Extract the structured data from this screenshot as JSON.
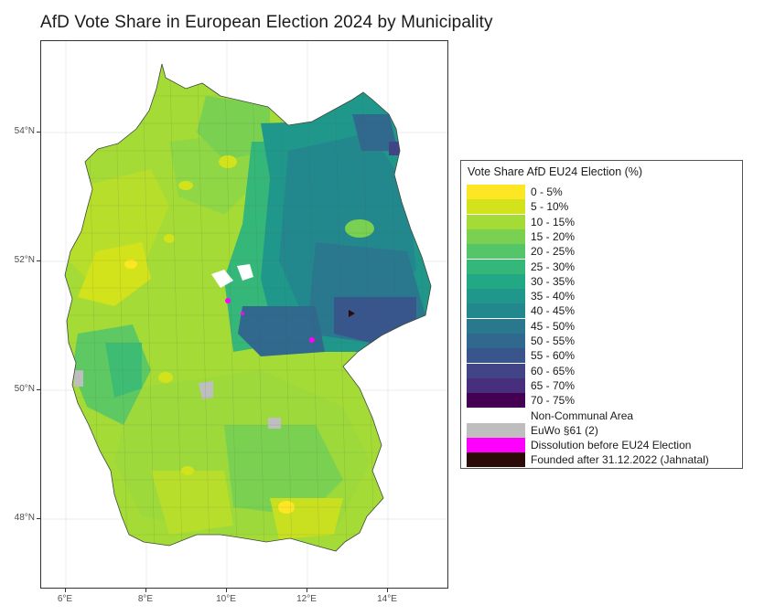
{
  "title": "AfD Vote Share in European Election 2024 by Municipality",
  "axes": {
    "y_labels": [
      "54°N",
      "52°N",
      "50°N",
      "48°N"
    ],
    "x_labels": [
      "6°E",
      "8°E",
      "10°E",
      "12°E",
      "14°E"
    ]
  },
  "legend": {
    "title": "Vote Share AfD EU24 Election (%)",
    "items": [
      {
        "label": "0 - 5%",
        "color": "#fde725"
      },
      {
        "label": "5 - 10%",
        "color": "#d2e21b"
      },
      {
        "label": "10 - 15%",
        "color": "#a5db36"
      },
      {
        "label": "15 - 20%",
        "color": "#7ad151"
      },
      {
        "label": "20 - 25%",
        "color": "#54c568"
      },
      {
        "label": "25 - 30%",
        "color": "#35b779"
      },
      {
        "label": "30 - 35%",
        "color": "#22a884"
      },
      {
        "label": "35 - 40%",
        "color": "#1f988b"
      },
      {
        "label": "40 - 45%",
        "color": "#23888e"
      },
      {
        "label": "45 - 50%",
        "color": "#2a788e"
      },
      {
        "label": "50 - 55%",
        "color": "#31688e"
      },
      {
        "label": "55 - 60%",
        "color": "#39568c"
      },
      {
        "label": "60 - 65%",
        "color": "#414487"
      },
      {
        "label": "65 - 70%",
        "color": "#472f7d"
      },
      {
        "label": "70 - 75%",
        "color": "#440154"
      },
      {
        "label": "Non-Communal Area",
        "color": "#ffffff"
      },
      {
        "label": "EuWo §61 (2)",
        "color": "#bebebe"
      },
      {
        "label": "Dissolution before EU24 Election",
        "color": "#ff00ff"
      },
      {
        "label": "Founded after 31.12.2022 (Jahnatal)",
        "color": "#2b0a07"
      }
    ]
  }
}
